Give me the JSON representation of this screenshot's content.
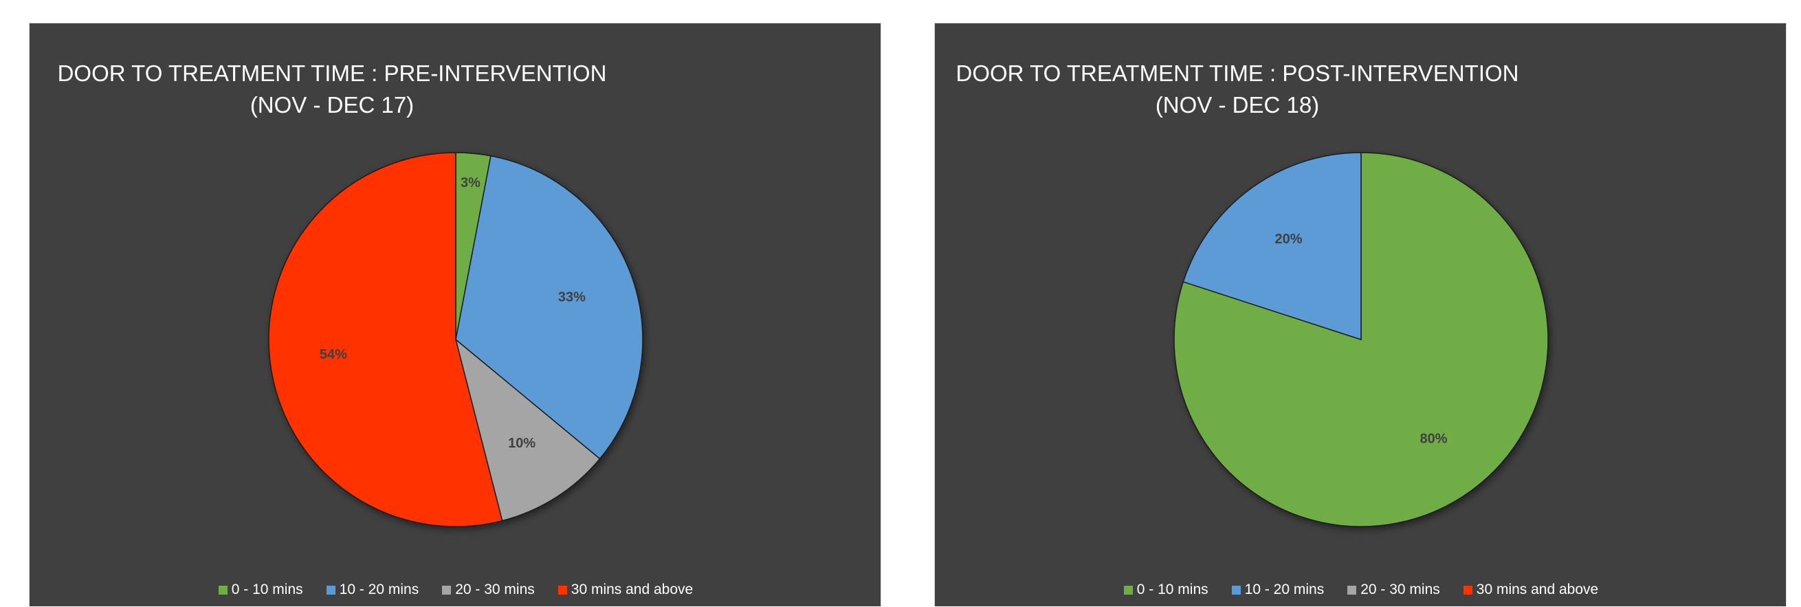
{
  "chart_data": [
    {
      "type": "pie",
      "title": "DOOR TO TREATMENT TIME : PRE-INTERVENTION",
      "subtitle": "(NOV - DEC 17)",
      "categories": [
        "0 - 10 mins",
        "10 - 20 mins",
        "20 - 30 mins",
        "30 mins and above"
      ],
      "values": [
        3,
        33,
        10,
        54
      ],
      "data_labels": [
        "3%",
        "33%",
        "10%",
        "54%"
      ],
      "colors": [
        "#70AD47",
        "#5B9BD5",
        "#A5A5A5",
        "#FF3300"
      ],
      "legend": "bottom"
    },
    {
      "type": "pie",
      "title": "DOOR TO TREATMENT TIME : POST-INTERVENTION",
      "subtitle": "(NOV - DEC 18)",
      "categories": [
        "0 - 10 mins",
        "10 - 20 mins",
        "20 - 30 mins",
        "30 mins and above"
      ],
      "values": [
        80,
        20,
        0,
        0
      ],
      "data_labels": [
        "80%",
        "20%",
        "",
        ""
      ],
      "colors": [
        "#70AD47",
        "#5B9BD5",
        "#A5A5A5",
        "#FF3300"
      ],
      "legend": "bottom"
    }
  ]
}
